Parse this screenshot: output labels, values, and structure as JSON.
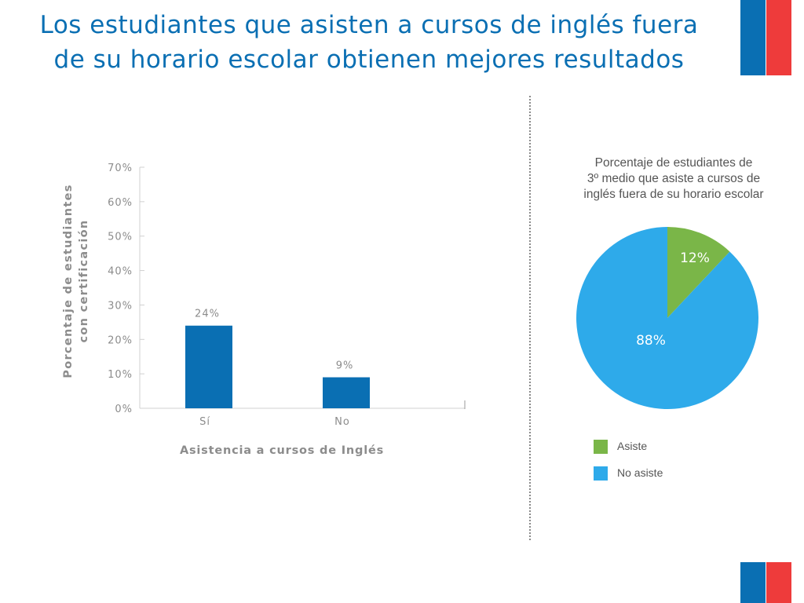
{
  "slide": {
    "title_line1": "Los estudiantes que asisten a cursos de inglés fuera",
    "title_line2": "de su horario escolar obtienen mejores resultados",
    "colors": {
      "title": "#0a6fb3",
      "flag_blue": "#0a6fb3",
      "flag_red": "#ee3b3b"
    }
  },
  "chart_data": [
    {
      "type": "bar",
      "title": "",
      "xlabel": "Asistencia a cursos de Inglés",
      "ylabel": "Porcentaje de estudiantes con certificación",
      "ylabel_lines": [
        "Porcentaje de estudiantes",
        "con certificación"
      ],
      "categories": [
        "Sí",
        "No"
      ],
      "values": [
        24,
        9
      ],
      "value_labels": [
        "24%",
        "9%"
      ],
      "ylim": [
        0,
        70
      ],
      "yticks": [
        0,
        10,
        20,
        30,
        40,
        50,
        60,
        70
      ],
      "ytick_labels": [
        "0%",
        "10%",
        "20%",
        "30%",
        "40%",
        "50%",
        "60%",
        "70%"
      ],
      "grid": false,
      "bar_color": "#0a6fb3"
    },
    {
      "type": "pie",
      "title": "Porcentaje de estudiantes de 3º medio que asiste a cursos de inglés fuera de su horario escolar",
      "title_lines": [
        "Porcentaje de estudiantes de",
        "3º medio que asiste a cursos de",
        "inglés fuera de su horario escolar"
      ],
      "labels": [
        "Asiste",
        "No asiste"
      ],
      "values": [
        12,
        88
      ],
      "value_labels": [
        "12%",
        "88%"
      ],
      "colors": [
        "#7ab648",
        "#2eaaea"
      ],
      "legend_position": "bottom-left"
    }
  ]
}
